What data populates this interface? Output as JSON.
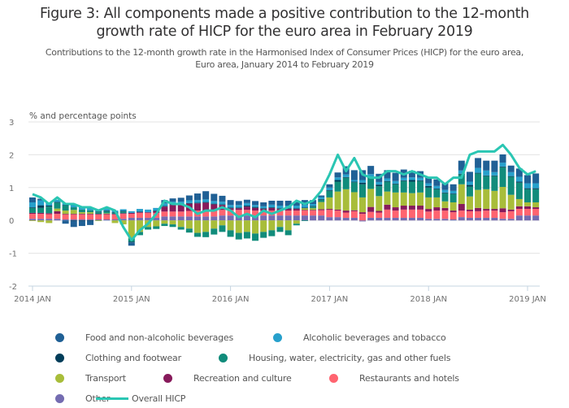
{
  "title": "Figure 3: All components made a positive contribution to the 12-month growth rate of HICP for the euro area in February 2019",
  "title_lines": [
    "Figure 3: All components made a positive contribution to the 12-month",
    "growth rate of HICP for the euro area in February 2019"
  ],
  "subtitle_lines": [
    "Contributions to the 12-month growth rate in the Harmonised Index of Consumer Prices (HICP) for the euro area,",
    "Euro area, January 2014 to February 2019"
  ],
  "chart_data": {
    "type": "bar",
    "stacked": true,
    "title": "Figure 3: All components made a positive contribution to the 12-month growth rate of HICP for the euro area in February 2019",
    "ylabel": "% and percentage points",
    "xlabel": "",
    "ylim": [
      -2,
      3
    ],
    "yticks": [
      "3",
      "2",
      "1",
      "0",
      "-1",
      "-2"
    ],
    "ytick_values": [
      3,
      2,
      1,
      0,
      -1,
      -2
    ],
    "xticks": [
      "2014 JAN",
      "2015 JAN",
      "2016 JAN",
      "2017 JAN",
      "2018 JAN",
      "2019 JAN"
    ],
    "xtick_index": [
      0,
      12,
      24,
      36,
      48,
      60
    ],
    "grid": true,
    "legend_position": "bottom",
    "categories": [
      "2014-01",
      "2014-02",
      "2014-03",
      "2014-04",
      "2014-05",
      "2014-06",
      "2014-07",
      "2014-08",
      "2014-09",
      "2014-10",
      "2014-11",
      "2014-12",
      "2015-01",
      "2015-02",
      "2015-03",
      "2015-04",
      "2015-05",
      "2015-06",
      "2015-07",
      "2015-08",
      "2015-09",
      "2015-10",
      "2015-11",
      "2015-12",
      "2016-01",
      "2016-02",
      "2016-03",
      "2016-04",
      "2016-05",
      "2016-06",
      "2016-07",
      "2016-08",
      "2016-09",
      "2016-10",
      "2016-11",
      "2016-12",
      "2017-01",
      "2017-02",
      "2017-03",
      "2017-04",
      "2017-05",
      "2017-06",
      "2017-07",
      "2017-08",
      "2017-09",
      "2017-10",
      "2017-11",
      "2017-12",
      "2018-01",
      "2018-02",
      "2018-03",
      "2018-04",
      "2018-05",
      "2018-06",
      "2018-07",
      "2018-08",
      "2018-09",
      "2018-10",
      "2018-11",
      "2018-12",
      "2019-01",
      "2019-02"
    ],
    "series": [
      {
        "name": "Other",
        "color": "#746cb1",
        "values": [
          0.05,
          0.05,
          0.05,
          0.05,
          0.03,
          0.03,
          0.03,
          0.03,
          0.03,
          0.03,
          0.03,
          0.05,
          0.08,
          0.08,
          0.08,
          0.08,
          0.12,
          0.12,
          0.12,
          0.12,
          0.12,
          0.12,
          0.12,
          0.15,
          0.15,
          0.15,
          0.15,
          0.15,
          0.15,
          0.15,
          0.15,
          0.15,
          0.15,
          0.15,
          0.15,
          0.15,
          0.1,
          0.1,
          0.08,
          0.08,
          -0.03,
          0.08,
          0.08,
          0.08,
          0.08,
          0.08,
          0.08,
          0.08,
          0.05,
          0.05,
          0.05,
          0.03,
          0.1,
          0.08,
          0.08,
          0.08,
          0.08,
          0.05,
          0.05,
          0.15,
          0.15,
          0.15
        ]
      },
      {
        "name": "Restaurants and hotels",
        "color": "#ff6470",
        "values": [
          0.15,
          0.15,
          0.14,
          0.15,
          0.15,
          0.15,
          0.15,
          0.15,
          0.15,
          0.15,
          0.15,
          0.15,
          0.12,
          0.15,
          0.15,
          0.15,
          0.15,
          0.15,
          0.15,
          0.17,
          0.18,
          0.17,
          0.17,
          0.17,
          0.17,
          0.17,
          0.17,
          0.15,
          0.15,
          0.15,
          0.15,
          0.15,
          0.15,
          0.15,
          0.15,
          0.16,
          0.22,
          0.2,
          0.16,
          0.2,
          0.2,
          0.18,
          0.16,
          0.25,
          0.22,
          0.25,
          0.25,
          0.25,
          0.22,
          0.25,
          0.25,
          0.22,
          0.2,
          0.2,
          0.2,
          0.22,
          0.22,
          0.2,
          0.23,
          0.2,
          0.2,
          0.2
        ]
      },
      {
        "name": "Recreation and culture",
        "color": "#871a5b",
        "values": [
          0.03,
          0.03,
          0.03,
          0.08,
          0.02,
          0.02,
          0.02,
          0.02,
          0.02,
          0.02,
          0.02,
          0.02,
          0.03,
          0.02,
          0.02,
          0.05,
          0.15,
          0.2,
          0.2,
          0.22,
          0.22,
          0.25,
          0.2,
          0.15,
          0.05,
          0.05,
          0.1,
          0.08,
          0.05,
          0.08,
          0.05,
          0.05,
          0.05,
          0.02,
          0.02,
          0.03,
          0.03,
          0.03,
          0.06,
          0.03,
          0.05,
          0.15,
          0.05,
          0.15,
          0.1,
          0.12,
          0.12,
          0.12,
          0.08,
          0.1,
          0.08,
          0.05,
          0.2,
          0.05,
          0.1,
          0.05,
          0.05,
          0.12,
          0.05,
          0.08,
          0.08,
          0.05
        ]
      },
      {
        "name": "Transport",
        "color": "#a8bd3a",
        "values": [
          -0.02,
          -0.05,
          -0.08,
          0.08,
          0.1,
          0.12,
          0.05,
          0.05,
          -0.02,
          0.02,
          -0.08,
          -0.12,
          -0.55,
          -0.35,
          -0.2,
          -0.18,
          -0.1,
          -0.12,
          -0.2,
          -0.25,
          -0.38,
          -0.35,
          -0.25,
          -0.15,
          -0.3,
          -0.38,
          -0.35,
          -0.4,
          -0.35,
          -0.3,
          -0.2,
          -0.3,
          -0.1,
          0.05,
          0.05,
          0.22,
          0.35,
          0.55,
          0.65,
          0.55,
          0.45,
          0.55,
          0.45,
          0.4,
          0.45,
          0.4,
          0.38,
          0.4,
          0.35,
          0.3,
          0.2,
          0.25,
          0.6,
          0.4,
          0.55,
          0.6,
          0.55,
          0.65,
          0.45,
          0.22,
          0.12,
          0.15
        ]
      },
      {
        "name": "Housing, water, electricity, gas and other fuels",
        "color": "#118c7b",
        "values": [
          0.15,
          0.15,
          0.2,
          0.18,
          0.15,
          0.08,
          0.08,
          0.06,
          0.05,
          0.06,
          0.03,
          0.05,
          -0.1,
          -0.1,
          -0.08,
          -0.08,
          -0.07,
          -0.08,
          -0.08,
          -0.12,
          -0.12,
          -0.16,
          -0.18,
          -0.2,
          -0.2,
          -0.2,
          -0.2,
          -0.22,
          -0.18,
          -0.18,
          -0.15,
          -0.15,
          -0.05,
          -0.02,
          0.05,
          0.07,
          0.2,
          0.3,
          0.35,
          0.3,
          0.4,
          0.35,
          0.3,
          0.3,
          0.25,
          0.35,
          0.35,
          0.35,
          0.3,
          0.25,
          0.25,
          0.25,
          0.3,
          0.3,
          0.5,
          0.4,
          0.45,
          0.6,
          0.55,
          0.5,
          0.4,
          0.4
        ]
      },
      {
        "name": "Clothing and footwear",
        "color": "#003d59",
        "values": [
          0.02,
          0.08,
          0.03,
          0.02,
          0.02,
          -0.02,
          -0.02,
          -0.02,
          0.02,
          0.02,
          0.02,
          0.02,
          -0.02,
          0.02,
          0.0,
          0.02,
          0.02,
          0.02,
          0.02,
          0.02,
          0.02,
          0.02,
          0.02,
          0.02,
          0.02,
          0.02,
          0.03,
          0.03,
          0.02,
          0.02,
          0.02,
          0.02,
          0.02,
          0.02,
          0.02,
          0.02,
          0.02,
          0.05,
          0.02,
          0.02,
          0.05,
          0.02,
          0.05,
          0.02,
          0.02,
          0.02,
          0.05,
          0.02,
          0.05,
          0.02,
          0.02,
          0.02,
          0.02,
          0.05,
          0.02,
          0.02,
          0.02,
          0.02,
          0.02,
          0.03,
          0.03,
          0.03
        ]
      },
      {
        "name": "Alcoholic beverages and tobacco",
        "color": "#27a0cc",
        "values": [
          0.15,
          0.15,
          0.1,
          0.07,
          0.05,
          0.1,
          0.08,
          0.08,
          0.05,
          0.05,
          0.05,
          0.05,
          0.05,
          0.08,
          0.08,
          0.08,
          0.08,
          0.08,
          0.08,
          0.08,
          0.08,
          0.08,
          0.08,
          0.08,
          0.08,
          0.08,
          0.08,
          0.06,
          0.06,
          0.08,
          0.08,
          0.08,
          0.08,
          0.08,
          0.06,
          0.06,
          0.08,
          0.08,
          0.08,
          0.05,
          0.08,
          0.08,
          0.08,
          0.08,
          0.08,
          0.08,
          0.08,
          0.08,
          0.08,
          0.08,
          0.08,
          0.08,
          0.1,
          0.1,
          0.15,
          0.15,
          0.1,
          0.12,
          0.12,
          0.15,
          0.15,
          0.15
        ]
      },
      {
        "name": "Food and non-alcoholic beverages",
        "color": "#206095",
        "values": [
          0.15,
          0.05,
          0.0,
          0.0,
          -0.1,
          -0.18,
          -0.15,
          -0.12,
          0.0,
          0.0,
          0.0,
          0.0,
          -0.1,
          0.0,
          0.0,
          0.0,
          0.1,
          0.1,
          0.12,
          0.15,
          0.2,
          0.25,
          0.22,
          0.18,
          0.15,
          0.12,
          0.1,
          0.12,
          0.12,
          0.12,
          0.15,
          0.15,
          0.12,
          0.15,
          0.12,
          0.05,
          0.1,
          0.15,
          0.25,
          0.3,
          0.3,
          0.25,
          0.25,
          0.25,
          0.25,
          0.25,
          0.2,
          0.2,
          0.2,
          0.2,
          0.2,
          0.2,
          0.3,
          0.3,
          0.3,
          0.3,
          0.35,
          0.25,
          0.2,
          0.25,
          0.25,
          0.3
        ]
      }
    ],
    "line_series": {
      "name": "Overall HICP",
      "color": "#2ac6b3",
      "values": [
        0.8,
        0.7,
        0.5,
        0.7,
        0.5,
        0.5,
        0.4,
        0.4,
        0.3,
        0.4,
        0.3,
        -0.2,
        -0.6,
        -0.3,
        -0.1,
        0.2,
        0.6,
        0.5,
        0.5,
        0.4,
        0.2,
        0.3,
        0.3,
        0.4,
        0.3,
        0.1,
        0.2,
        0.1,
        0.3,
        0.2,
        0.3,
        0.4,
        0.6,
        0.5,
        0.6,
        0.9,
        1.4,
        2.0,
        1.5,
        1.9,
        1.4,
        1.3,
        1.3,
        1.5,
        1.5,
        1.4,
        1.5,
        1.4,
        1.3,
        1.3,
        1.1,
        1.3,
        1.3,
        2.0,
        2.1,
        2.1,
        2.1,
        2.3,
        2.0,
        1.6,
        1.4,
        1.5
      ]
    }
  },
  "legend": {
    "items": [
      {
        "label": "Food and non-alcoholic beverages",
        "color": "#206095",
        "type": "dot"
      },
      {
        "label": "Alcoholic beverages and tobacco",
        "color": "#27a0cc",
        "type": "dot"
      },
      {
        "label": "Clothing and footwear",
        "color": "#003d59",
        "type": "dot"
      },
      {
        "label": "Housing, water, electricity, gas and other fuels",
        "color": "#118c7b",
        "type": "dot"
      },
      {
        "label": "Transport",
        "color": "#a8bd3a",
        "type": "dot"
      },
      {
        "label": "Recreation and culture",
        "color": "#871a5b",
        "type": "dot"
      },
      {
        "label": "Restaurants and hotels",
        "color": "#ff6470",
        "type": "dot"
      },
      {
        "label": "Other",
        "color": "#746cb1",
        "type": "dot"
      },
      {
        "label": "Overall HICP",
        "color": "#2ac6b3",
        "type": "line"
      }
    ]
  }
}
